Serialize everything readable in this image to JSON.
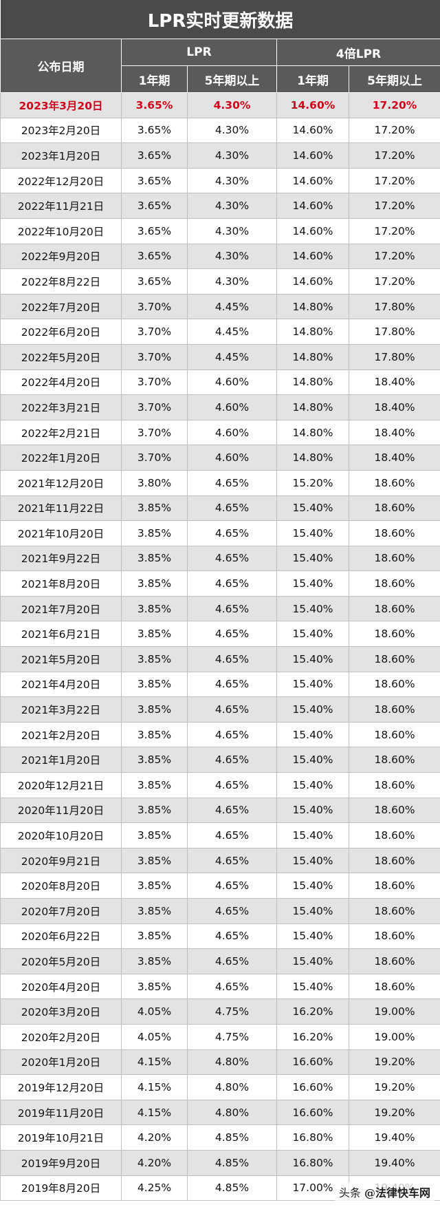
{
  "title": "LPR实时更新数据",
  "headers": {
    "date": "公布日期",
    "lpr_group": "LPR",
    "lpr4_group": "4倍LPR",
    "one_year": "1年期",
    "five_year": "5年期以上",
    "one_year_4x": "1年期",
    "five_year_4x": "5年期以上"
  },
  "accent_color": "#d0021b",
  "rows": [
    [
      "2023年3月20日",
      "3.65%",
      "4.30%",
      "14.60%",
      "17.20%"
    ],
    [
      "2023年2月20日",
      "3.65%",
      "4.30%",
      "14.60%",
      "17.20%"
    ],
    [
      "2023年1月20日",
      "3.65%",
      "4.30%",
      "14.60%",
      "17.20%"
    ],
    [
      "2022年12月20日",
      "3.65%",
      "4.30%",
      "14.60%",
      "17.20%"
    ],
    [
      "2022年11月21日",
      "3.65%",
      "4.30%",
      "14.60%",
      "17.20%"
    ],
    [
      "2022年10月20日",
      "3.65%",
      "4.30%",
      "14.60%",
      "17.20%"
    ],
    [
      "2022年9月20日",
      "3.65%",
      "4.30%",
      "14.60%",
      "17.20%"
    ],
    [
      "2022年8月22日",
      "3.65%",
      "4.30%",
      "14.60%",
      "17.20%"
    ],
    [
      "2022年7月20日",
      "3.70%",
      "4.45%",
      "14.80%",
      "17.80%"
    ],
    [
      "2022年6月20日",
      "3.70%",
      "4.45%",
      "14.80%",
      "17.80%"
    ],
    [
      "2022年5月20日",
      "3.70%",
      "4.45%",
      "14.80%",
      "17.80%"
    ],
    [
      "2022年4月20日",
      "3.70%",
      "4.60%",
      "14.80%",
      "18.40%"
    ],
    [
      "2022年3月21日",
      "3.70%",
      "4.60%",
      "14.80%",
      "18.40%"
    ],
    [
      "2022年2月21日",
      "3.70%",
      "4.60%",
      "14.80%",
      "18.40%"
    ],
    [
      "2022年1月20日",
      "3.70%",
      "4.60%",
      "14.80%",
      "18.40%"
    ],
    [
      "2021年12月20日",
      "3.80%",
      "4.65%",
      "15.20%",
      "18.60%"
    ],
    [
      "2021年11月22日",
      "3.85%",
      "4.65%",
      "15.40%",
      "18.60%"
    ],
    [
      "2021年10月20日",
      "3.85%",
      "4.65%",
      "15.40%",
      "18.60%"
    ],
    [
      "2021年9月22日",
      "3.85%",
      "4.65%",
      "15.40%",
      "18.60%"
    ],
    [
      "2021年8月20日",
      "3.85%",
      "4.65%",
      "15.40%",
      "18.60%"
    ],
    [
      "2021年7月20日",
      "3.85%",
      "4.65%",
      "15.40%",
      "18.60%"
    ],
    [
      "2021年6月21日",
      "3.85%",
      "4.65%",
      "15.40%",
      "18.60%"
    ],
    [
      "2021年5月20日",
      "3.85%",
      "4.65%",
      "15.40%",
      "18.60%"
    ],
    [
      "2021年4月20日",
      "3.85%",
      "4.65%",
      "15.40%",
      "18.60%"
    ],
    [
      "2021年3月22日",
      "3.85%",
      "4.65%",
      "15.40%",
      "18.60%"
    ],
    [
      "2021年2月20日",
      "3.85%",
      "4.65%",
      "15.40%",
      "18.60%"
    ],
    [
      "2021年1月20日",
      "3.85%",
      "4.65%",
      "15.40%",
      "18.60%"
    ],
    [
      "2020年12月21日",
      "3.85%",
      "4.65%",
      "15.40%",
      "18.60%"
    ],
    [
      "2020年11月20日",
      "3.85%",
      "4.65%",
      "15.40%",
      "18.60%"
    ],
    [
      "2020年10月20日",
      "3.85%",
      "4.65%",
      "15.40%",
      "18.60%"
    ],
    [
      "2020年9月21日",
      "3.85%",
      "4.65%",
      "15.40%",
      "18.60%"
    ],
    [
      "2020年8月20日",
      "3.85%",
      "4.65%",
      "15.40%",
      "18.60%"
    ],
    [
      "2020年7月20日",
      "3.85%",
      "4.65%",
      "15.40%",
      "18.60%"
    ],
    [
      "2020年6月22日",
      "3.85%",
      "4.65%",
      "15.40%",
      "18.60%"
    ],
    [
      "2020年5月20日",
      "3.85%",
      "4.65%",
      "15.40%",
      "18.60%"
    ],
    [
      "2020年4月20日",
      "3.85%",
      "4.65%",
      "15.40%",
      "18.60%"
    ],
    [
      "2020年3月20日",
      "4.05%",
      "4.75%",
      "16.20%",
      "19.00%"
    ],
    [
      "2020年2月20日",
      "4.05%",
      "4.75%",
      "16.20%",
      "19.00%"
    ],
    [
      "2020年1月20日",
      "4.15%",
      "4.80%",
      "16.60%",
      "19.20%"
    ],
    [
      "2019年12月20日",
      "4.15%",
      "4.80%",
      "16.60%",
      "19.20%"
    ],
    [
      "2019年11月20日",
      "4.15%",
      "4.80%",
      "16.60%",
      "19.20%"
    ],
    [
      "2019年10月21日",
      "4.20%",
      "4.85%",
      "16.80%",
      "19.40%"
    ],
    [
      "2019年9月20日",
      "4.20%",
      "4.85%",
      "16.80%",
      "19.40%"
    ],
    [
      "2019年8月20日",
      "4.25%",
      "4.85%",
      "17.00%",
      "19.40%"
    ]
  ],
  "watermark": {
    "prefix": "头条",
    "brand": "@法律快车网"
  }
}
